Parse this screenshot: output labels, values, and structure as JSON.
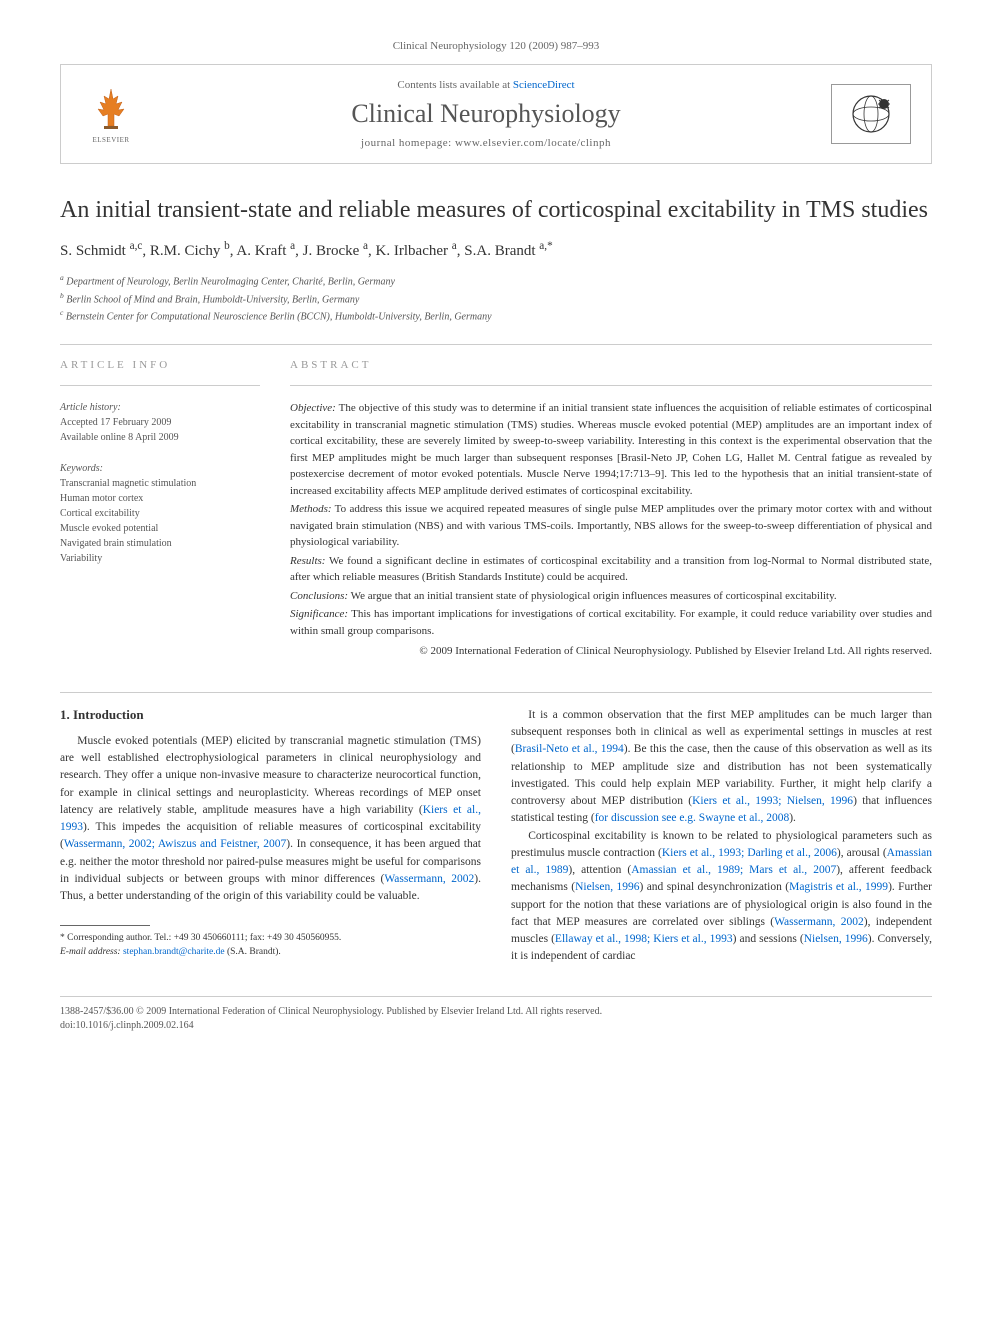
{
  "header": {
    "citation": "Clinical Neurophysiology 120 (2009) 987–993",
    "contents_prefix": "Contents lists available at ",
    "contents_link": "ScienceDirect",
    "journal_name": "Clinical Neurophysiology",
    "homepage_prefix": "journal homepage: ",
    "homepage_url": "www.elsevier.com/locate/clinph",
    "elsevier_label": "ELSEVIER"
  },
  "article": {
    "title": "An initial transient-state and reliable measures of corticospinal excitability in TMS studies",
    "authors_html": "S. Schmidt <sup>a,c</sup>, R.M. Cichy <sup>b</sup>, A. Kraft <sup>a</sup>, J. Brocke <sup>a</sup>, K. Irlbacher <sup>a</sup>, S.A. Brandt <sup>a,*</sup>",
    "affiliations": [
      "a Department of Neurology, Berlin NeuroImaging Center, Charité, Berlin, Germany",
      "b Berlin School of Mind and Brain, Humboldt-University, Berlin, Germany",
      "c Bernstein Center for Computational Neuroscience Berlin (BCCN), Humboldt-University, Berlin, Germany"
    ]
  },
  "info": {
    "heading": "ARTICLE INFO",
    "history_label": "Article history:",
    "accepted": "Accepted 17 February 2009",
    "available": "Available online 8 April 2009",
    "keywords_label": "Keywords:",
    "keywords": [
      "Transcranial magnetic stimulation",
      "Human motor cortex",
      "Cortical excitability",
      "Muscle evoked potential",
      "Navigated brain stimulation",
      "Variability"
    ]
  },
  "abstract": {
    "heading": "ABSTRACT",
    "objective_label": "Objective:",
    "objective": "The objective of this study was to determine if an initial transient state influences the acquisition of reliable estimates of corticospinal excitability in transcranial magnetic stimulation (TMS) studies. Whereas muscle evoked potential (MEP) amplitudes are an important index of cortical excitability, these are severely limited by sweep-to-sweep variability. Interesting in this context is the experimental observation that the first MEP amplitudes might be much larger than subsequent responses [Brasil-Neto JP, Cohen LG, Hallet M. Central fatigue as revealed by postexercise decrement of motor evoked potentials. Muscle Nerve 1994;17:713–9]. This led to the hypothesis that an initial transient-state of increased excitability affects MEP amplitude derived estimates of corticospinal excitability.",
    "methods_label": "Methods:",
    "methods": "To address this issue we acquired repeated measures of single pulse MEP amplitudes over the primary motor cortex with and without navigated brain stimulation (NBS) and with various TMS-coils. Importantly, NBS allows for the sweep-to-sweep differentiation of physical and physiological variability.",
    "results_label": "Results:",
    "results": "We found a significant decline in estimates of corticospinal excitability and a transition from log-Normal to Normal distributed state, after which reliable measures (British Standards Institute) could be acquired.",
    "conclusions_label": "Conclusions:",
    "conclusions": "We argue that an initial transient state of physiological origin influences measures of corticospinal excitability.",
    "significance_label": "Significance:",
    "significance": "This has important implications for investigations of cortical excitability. For example, it could reduce variability over studies and within small group comparisons.",
    "copyright": "© 2009 International Federation of Clinical Neurophysiology. Published by Elsevier Ireland Ltd. All rights reserved."
  },
  "body": {
    "intro_heading": "1. Introduction",
    "col1_p1": "Muscle evoked potentials (MEP) elicited by transcranial magnetic stimulation (TMS) are well established electrophysiological parameters in clinical neurophysiology and research. They offer a unique non-invasive measure to characterize neurocortical function, for example in clinical settings and neuroplasticity. Whereas recordings of MEP onset latency are relatively stable, amplitude measures have a high variability (Kiers et al., 1993). This impedes the acquisition of reliable measures of corticospinal excitability (Wassermann, 2002; Awiszus and Feistner, 2007). In consequence, it has been argued that e.g. neither the motor threshold nor paired-pulse measures might be useful for comparisons in individual subjects or between groups with minor differences (Wassermann, 2002). Thus, a better understanding of the origin of this variability could be valuable.",
    "col2_p1": "It is a common observation that the first MEP amplitudes can be much larger than subsequent responses both in clinical as well as experimental settings in muscles at rest (Brasil-Neto et al., 1994). Be this the case, then the cause of this observation as well as its relationship to MEP amplitude size and distribution has not been systematically investigated. This could help explain MEP variability. Further, it might help clarify a controversy about MEP distribution (Kiers et al., 1993; Nielsen, 1996) that influences statistical testing (for discussion see e.g. Swayne et al., 2008).",
    "col2_p2": "Corticospinal excitability is known to be related to physiological parameters such as prestimulus muscle contraction (Kiers et al., 1993; Darling et al., 2006), arousal (Amassian et al., 1989), attention (Amassian et al., 1989; Mars et al., 2007), afferent feedback mechanisms (Nielsen, 1996) and spinal desynchronization (Magistris et al., 1999). Further support for the notion that these variations are of physiological origin is also found in the fact that MEP measures are correlated over siblings (Wassermann, 2002), independent muscles (Ellaway et al., 1998; Kiers et al., 1993) and sessions (Nielsen, 1996). Conversely, it is independent of cardiac"
  },
  "footnote": {
    "corr_label": "* Corresponding author.",
    "corr_text": "Tel.: +49 30 450660111; fax: +49 30 450560955.",
    "email_label": "E-mail address:",
    "email": "stephan.brandt@charite.de",
    "email_who": "(S.A. Brandt)."
  },
  "bottom": {
    "issn": "1388-2457/$36.00 © 2009 International Federation of Clinical Neurophysiology. Published by Elsevier Ireland Ltd. All rights reserved.",
    "doi": "doi:10.1016/j.clinph.2009.02.164"
  },
  "colors": {
    "link": "#0066cc",
    "text": "#333333",
    "muted": "#666666",
    "border": "#cccccc"
  }
}
